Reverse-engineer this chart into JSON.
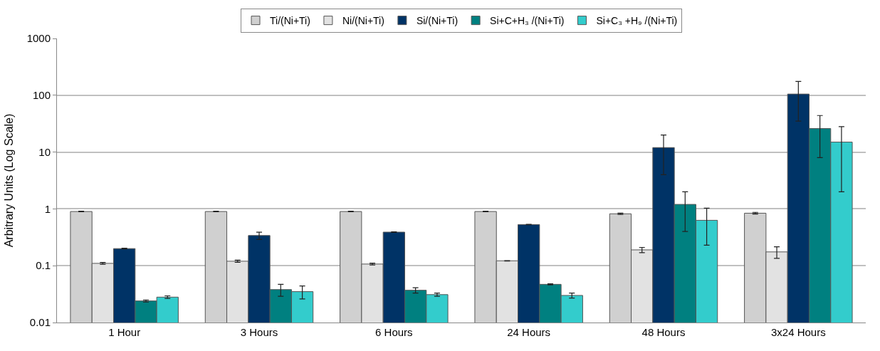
{
  "chart_data": {
    "type": "bar",
    "ylabel": "Arbitrary Units (Log Scale)",
    "categories": [
      "1 Hour",
      "3 Hours",
      "6 Hours",
      "24 Hours",
      "48 Hours",
      "3x24 Hours"
    ],
    "series": [
      {
        "name": "Ti/(Ni+Ti)",
        "color": "#d0d0d0",
        "values": [
          0.9,
          0.9,
          0.9,
          0.9,
          0.82,
          0.84
        ],
        "errors": [
          0.01,
          0.01,
          0.01,
          0.01,
          0.02,
          0.03
        ]
      },
      {
        "name": "Ni/(Ni+Ti)",
        "color": "#e2e2e2",
        "values": [
          0.11,
          0.12,
          0.107,
          0.122,
          0.19,
          0.175
        ],
        "errors": [
          0.004,
          0.005,
          0.004,
          0.001,
          0.02,
          0.04
        ]
      },
      {
        "name": "Si/(Ni+Ti)",
        "color": "#003366",
        "values": [
          0.2,
          0.34,
          0.39,
          0.53,
          12,
          105
        ],
        "errors": [
          0.003,
          0.05,
          0.005,
          0.005,
          8,
          70
        ]
      },
      {
        "name": "Si+C+H₃ /(Ni+Ti)",
        "color": "#008080",
        "values": [
          0.024,
          0.038,
          0.037,
          0.047,
          1.2,
          26
        ],
        "errors": [
          0.001,
          0.009,
          0.004,
          0.001,
          0.8,
          18
        ]
      },
      {
        "name": "Si+C₃ +H₉ /(Ni+Ti)",
        "color": "#33cccc",
        "values": [
          0.028,
          0.035,
          0.031,
          0.03,
          0.63,
          15
        ],
        "errors": [
          0.0015,
          0.009,
          0.002,
          0.003,
          0.4,
          13
        ]
      }
    ],
    "log": "y",
    "ylim": [
      0.01,
      1000
    ],
    "yticks": [
      {
        "value": 0.01,
        "label": "0.01"
      },
      {
        "value": 0.1,
        "label": "0.1"
      },
      1,
      10,
      100,
      1000
    ],
    "grid": "y",
    "legend": "top"
  }
}
